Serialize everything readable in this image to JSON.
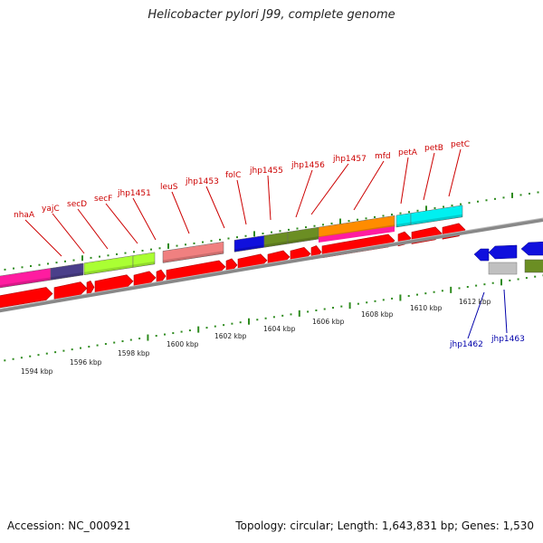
{
  "title": "Helicobacter pylori J99, complete genome",
  "footer": {
    "accession": "Accession: NC_000921",
    "topology": "Topology: circular; Length: 1,643,831 bp; Genes: 1,530"
  },
  "top_gene_labels": [
    "nhaA",
    "yajC",
    "secD",
    "secF",
    "jhp1451",
    "leuS",
    "jhp1453",
    "folC",
    "jhp1455",
    "jhp1456",
    "jhp1457",
    "mfd",
    "petA",
    "petB",
    "petC"
  ],
  "bottom_gene_labels": [
    "jhp1462",
    "jhp1463"
  ],
  "scale_labels": [
    "1594 kbp",
    "1596 kbp",
    "1598 kbp",
    "1600 kbp",
    "1602 kbp",
    "1604 kbp",
    "1606 kbp",
    "1608 kbp",
    "1610 kbp",
    "1612 kbp"
  ],
  "colors": {
    "cds": "#ff0000",
    "backbone": "#888888",
    "tick": "#2e8b1e",
    "top_label": "#cc0000",
    "bottom_label": "#0000aa",
    "cog_magenta": "#ff1ca0",
    "cog_navy": "#4a3f8a",
    "cog_lime": "#aaff33",
    "cog_salmon": "#f08080",
    "cog_blue": "#1010dd",
    "cog_olive": "#6b8e23",
    "cog_orange": "#ff8c00",
    "cog_cyan": "#00f0f0",
    "cog_gray": "#c0c0c0"
  }
}
